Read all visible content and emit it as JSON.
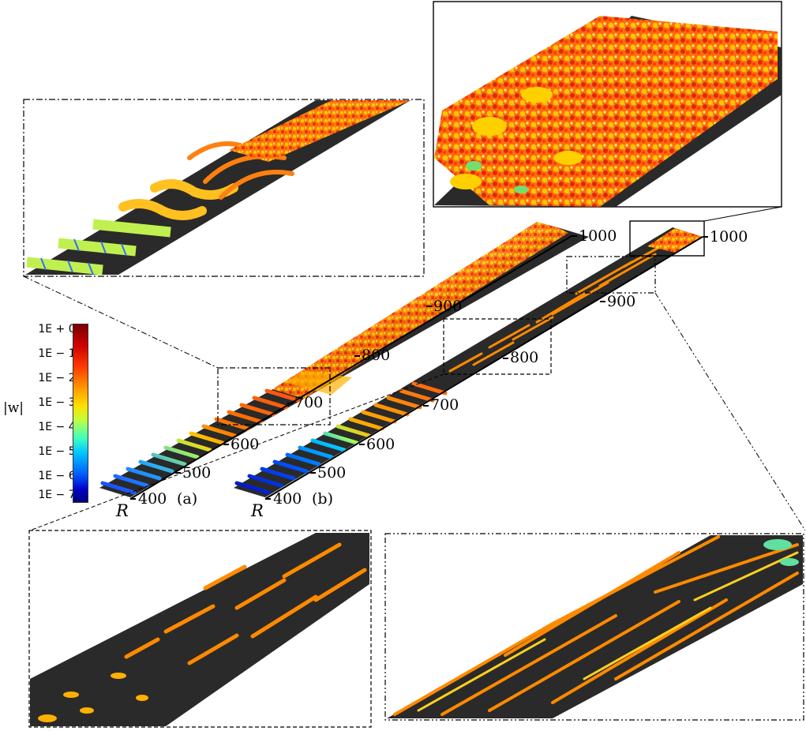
{
  "colorbar": {
    "label": "|w|",
    "ticks": [
      "1E + 0",
      "1E − 1",
      "1E − 2",
      "1E − 3",
      "1E − 4",
      "1E − 5",
      "1E − 6",
      "1E − 7"
    ],
    "colors": [
      "#7a0000",
      "#ff3a00",
      "#ffe000",
      "#3fffbf",
      "#0060ff",
      "#00007a"
    ]
  },
  "panel_a": {
    "tag": "(a)",
    "axis_symbol": "R",
    "ticks": [
      "400",
      "500",
      "600",
      "700",
      "800",
      "900",
      "1000"
    ]
  },
  "panel_b": {
    "tag": "(b)",
    "axis_symbol": "R",
    "ticks": [
      "400",
      "500",
      "600",
      "700",
      "800",
      "900",
      "1000"
    ]
  },
  "colors": {
    "channel_floor": "#2a2a2a",
    "streak_warm": "#ff7a00",
    "streak_yellow": "#ffd400",
    "roll_green": "#7fe060",
    "roll_blue": "#2050ff",
    "turbulent": "#ff5a10"
  }
}
